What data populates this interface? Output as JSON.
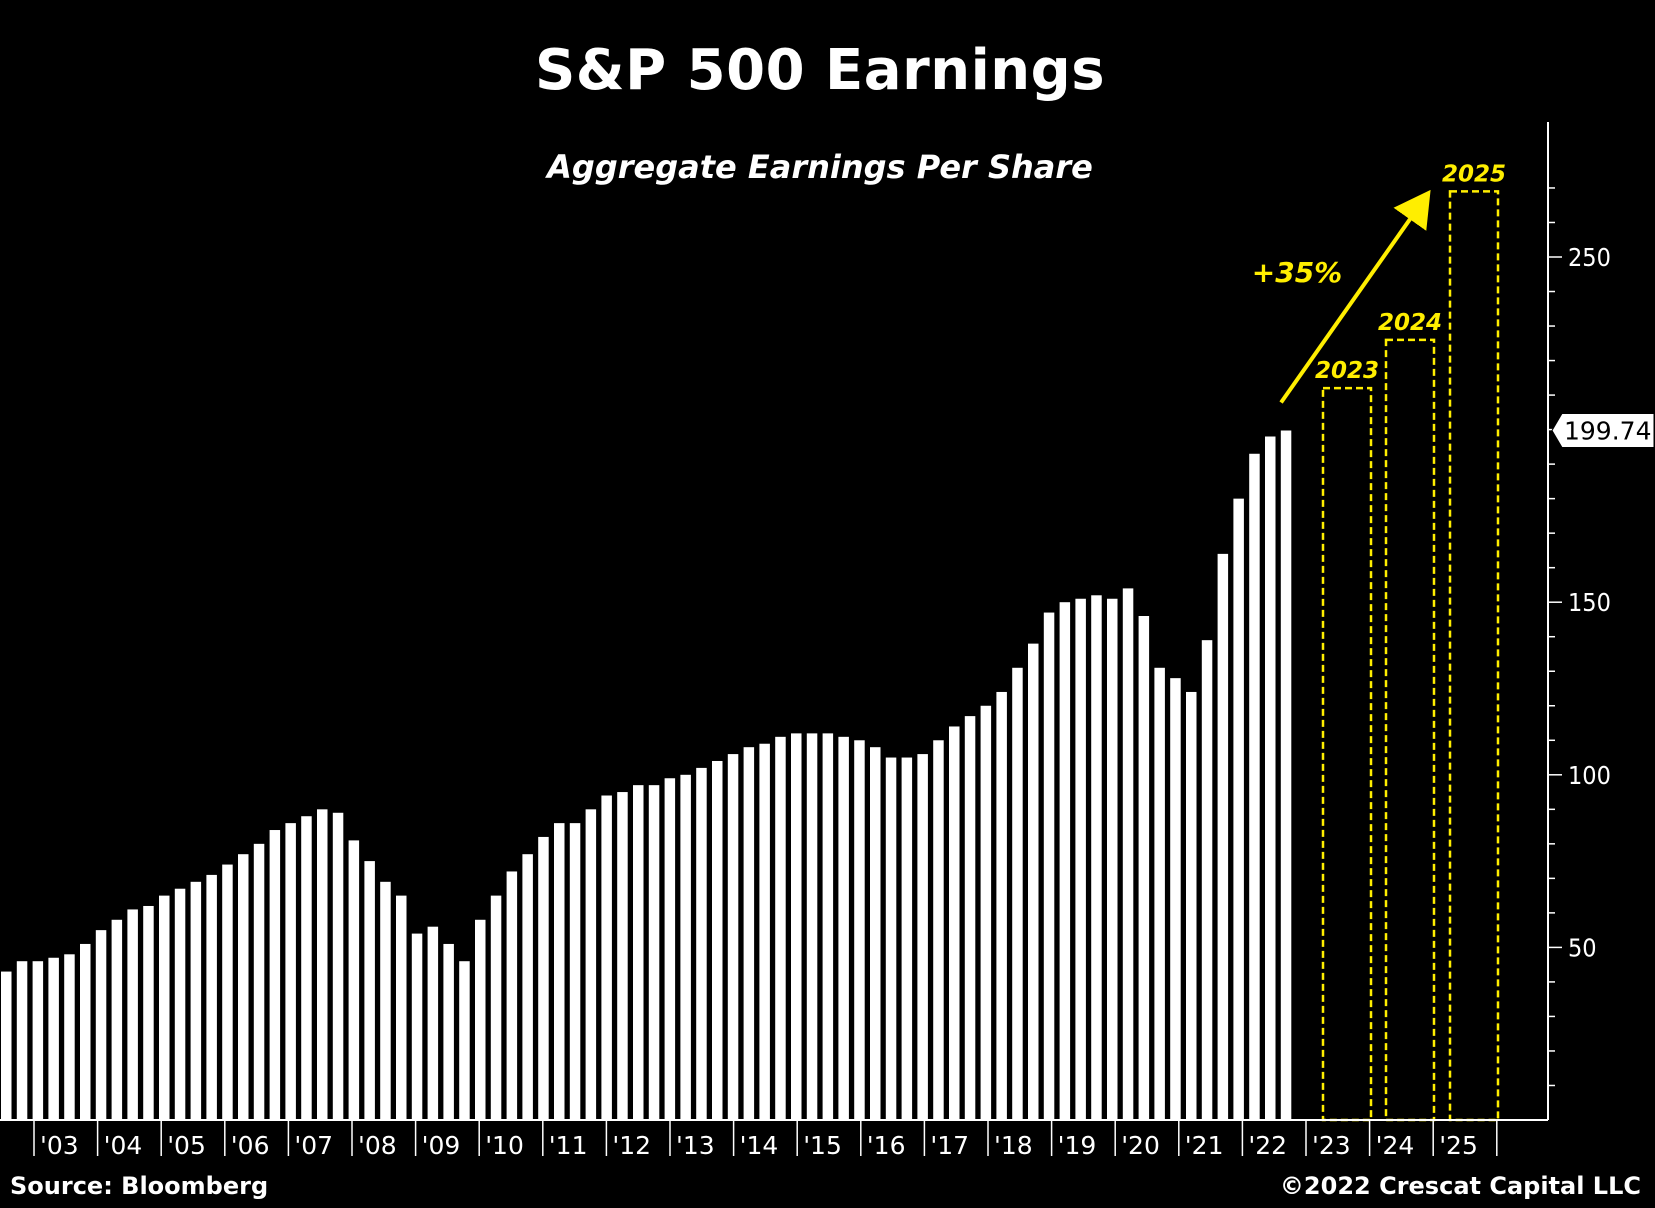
{
  "title": "S&P 500 Earnings",
  "subtitle": "Aggregate Earnings Per Share",
  "footer": {
    "source": "Source: Bloomberg",
    "copyright": "©2022 Crescat Capital LLC"
  },
  "colors": {
    "background": "#000000",
    "bars": "#ffffff",
    "projection": "#ffee00",
    "axis": "#ffffff"
  },
  "chart_data": {
    "type": "bar",
    "ylim": [
      0,
      280
    ],
    "yticks": [
      50,
      100,
      150,
      250
    ],
    "ytick_labels": [
      "50",
      "100",
      "150",
      "250"
    ],
    "x_tick_labels": [
      "'03",
      "'04",
      "'05",
      "'06",
      "'07",
      "'08",
      "'09",
      "'10",
      "'11",
      "'12",
      "'13",
      "'14",
      "'15",
      "'16",
      "'17",
      "'18",
      "'19",
      "'20",
      "'21",
      "'22",
      "'23",
      "'24",
      "'25"
    ],
    "series": [
      {
        "values": [
          43,
          46,
          46,
          47,
          48,
          51,
          55,
          58,
          61,
          62,
          65,
          67,
          69,
          71,
          74,
          77,
          80,
          84,
          86,
          88,
          90,
          89,
          81,
          75,
          69,
          65,
          54,
          56,
          51,
          46,
          58,
          65,
          72,
          77,
          82,
          86,
          86,
          90,
          94,
          95,
          97,
          97,
          99,
          100,
          102,
          104,
          106,
          108,
          109,
          111,
          112,
          112,
          112,
          111,
          110,
          108,
          105,
          105,
          106,
          110,
          114,
          117,
          120,
          124,
          131,
          138,
          147,
          150,
          151,
          152,
          151,
          154,
          146,
          131,
          128,
          124,
          139,
          164,
          180,
          193,
          198,
          199.74
        ]
      }
    ],
    "last_value_label": "199.74",
    "projections": [
      {
        "label": "2023",
        "value": 212
      },
      {
        "label": "2024",
        "value": 226
      },
      {
        "label": "2025",
        "value": 269
      }
    ],
    "growth_annotation": "+35%"
  }
}
